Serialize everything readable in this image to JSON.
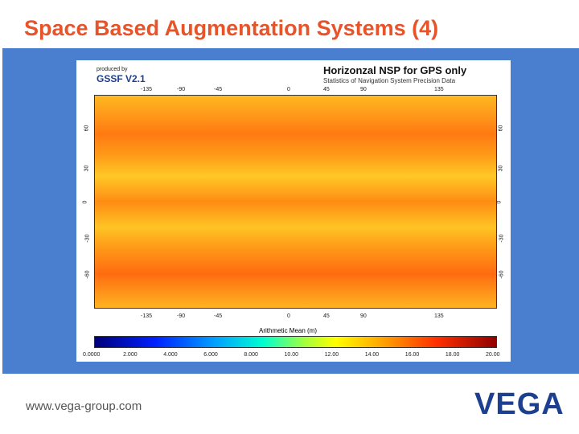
{
  "header": {
    "title": "Space Based Augmentation Systems (4)"
  },
  "figure": {
    "credit": "produced by",
    "software": "GSSF V2.1",
    "title": "Horizonzal NSP for GPS only",
    "subtitle": "Statistics of Navigation System Precision Data",
    "longitudes": [
      "-135",
      "-90",
      "-45",
      "0",
      "45",
      "90",
      "135"
    ],
    "latitudes": [
      "60",
      "30",
      "0",
      "-30",
      "-60"
    ],
    "colorbar": {
      "label": "Arithmetic Mean (m)",
      "ticks": [
        "0.0000",
        "2.000",
        "4.000",
        "6.000",
        "8.000",
        "10.00",
        "12.00",
        "14.00",
        "16.00",
        "18.00",
        "20.00"
      ]
    }
  },
  "footer": {
    "url": "www.vega-group.com",
    "logo": "VEGA"
  }
}
